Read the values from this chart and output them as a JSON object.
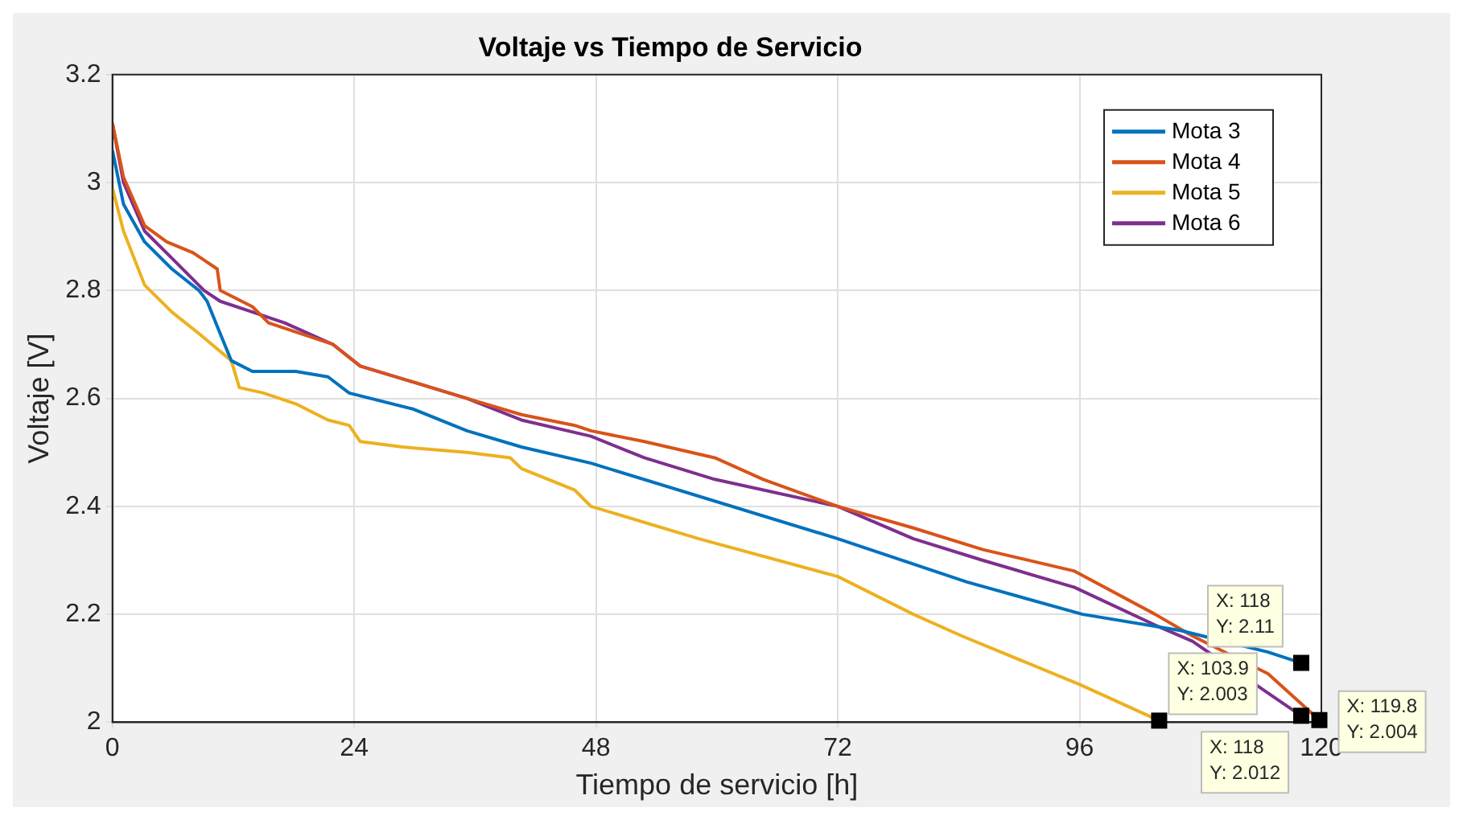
{
  "chart_data": {
    "type": "line",
    "title": "Voltaje vs Tiempo de Servicio",
    "xlabel": "Tiempo de servicio [h]",
    "ylabel": "Voltaje [V]",
    "xlim": [
      0,
      120
    ],
    "xticks": [
      0,
      24,
      48,
      72,
      96,
      120
    ],
    "ylim": [
      2,
      3.2
    ],
    "yticks": [
      2,
      2.2,
      2.4,
      2.6,
      2.8,
      3,
      3.2
    ],
    "grid": true,
    "legend": "top right",
    "line_style": "solid",
    "marker": "none",
    "series": [
      {
        "name": "Mota 3",
        "color": "#0072bd",
        "x": [
          0,
          1.1,
          3.2,
          5.9,
          8.6,
          9.4,
          10.7,
          11.8,
          13.9,
          18.2,
          21.4,
          23.5,
          29.9,
          35.2,
          40.6,
          47.5,
          72,
          84.8,
          96.3,
          106,
          114.7,
          118
        ],
        "values": [
          3.06,
          2.96,
          2.89,
          2.84,
          2.8,
          2.78,
          2.72,
          2.67,
          2.65,
          2.65,
          2.64,
          2.61,
          2.58,
          2.54,
          2.51,
          2.48,
          2.34,
          2.26,
          2.2,
          2.17,
          2.13,
          2.11
        ]
      },
      {
        "name": "Mota 4",
        "color": "#d95319",
        "x": [
          0,
          1.1,
          3.2,
          5.4,
          8,
          10.4,
          10.7,
          13.9,
          15.5,
          21.9,
          24.6,
          29.9,
          35.2,
          40.6,
          45.9,
          47.5,
          52.8,
          59.8,
          64.6,
          72,
          79.5,
          86.4,
          95.5,
          103.5,
          107.2,
          114.7,
          119.8
        ],
        "values": [
          3.11,
          3.01,
          2.92,
          2.89,
          2.87,
          2.84,
          2.8,
          2.77,
          2.74,
          2.7,
          2.66,
          2.63,
          2.6,
          2.57,
          2.55,
          2.54,
          2.52,
          2.49,
          2.45,
          2.4,
          2.36,
          2.32,
          2.28,
          2.2,
          2.16,
          2.09,
          2.004
        ]
      },
      {
        "name": "Mota 5",
        "color": "#edb120",
        "x": [
          0,
          1.1,
          3.2,
          5.9,
          8.6,
          11.8,
          12.6,
          15.0,
          18.2,
          21.4,
          23.5,
          24.6,
          28.8,
          35.2,
          39.5,
          40.6,
          45.9,
          47.5,
          58.2,
          72,
          79.5,
          84.3,
          96,
          103.9
        ],
        "values": [
          2.99,
          2.91,
          2.81,
          2.76,
          2.72,
          2.67,
          2.62,
          2.61,
          2.59,
          2.56,
          2.55,
          2.52,
          2.51,
          2.5,
          2.49,
          2.47,
          2.43,
          2.4,
          2.34,
          2.27,
          2.2,
          2.16,
          2.07,
          2.003
        ]
      },
      {
        "name": "Mota 6",
        "color": "#7e2f8e",
        "x": [
          0,
          1.1,
          3.2,
          5.9,
          9.1,
          10.7,
          13.9,
          17.1,
          21.9,
          24.6,
          29.9,
          35.2,
          40.6,
          47.5,
          52.8,
          59.8,
          72,
          79.5,
          86.4,
          95.5,
          103.5,
          107.2,
          118
        ],
        "values": [
          3.11,
          3.0,
          2.91,
          2.86,
          2.8,
          2.78,
          2.76,
          2.74,
          2.7,
          2.66,
          2.63,
          2.6,
          2.56,
          2.53,
          2.49,
          2.45,
          2.4,
          2.34,
          2.3,
          2.25,
          2.18,
          2.15,
          2.012
        ]
      }
    ],
    "annotations": [
      {
        "text": "X: 118\nY: 2.11",
        "x": 118,
        "y": 2.11
      },
      {
        "text": "X: 119.8\nY: 2.004",
        "x": 119.8,
        "y": 2.004
      },
      {
        "text": "X: 103.9\nY: 2.003",
        "x": 103.9,
        "y": 2.003
      },
      {
        "text": "X: 118\nY: 2.012",
        "x": 118,
        "y": 2.012
      }
    ]
  }
}
